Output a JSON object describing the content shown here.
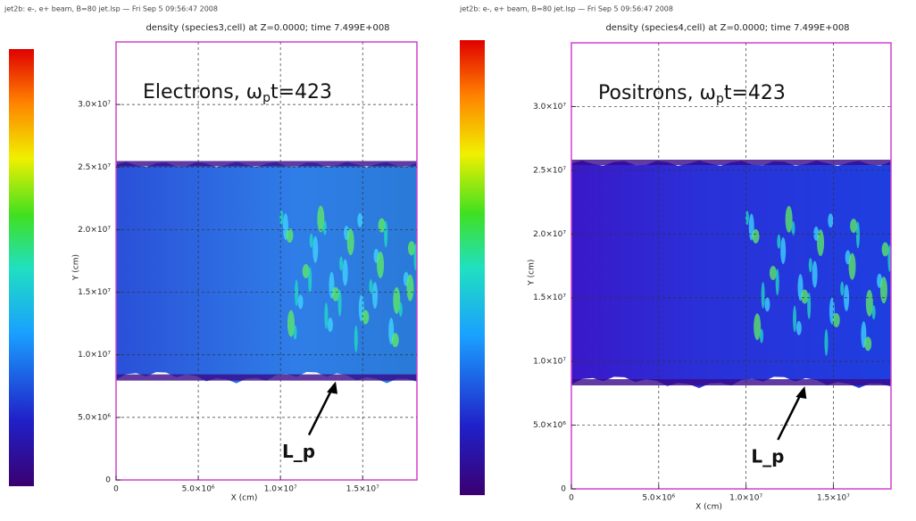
{
  "chart_data": [
    {
      "type": "heatmap",
      "header": "jet2b: e-, e+ beam, B=80 jet.lsp — Fri Sep 5 09:56:47 2008",
      "title": "density (species3,cell) at Z=0.0000; time 7.499E+008",
      "annotation": [
        "Electrons, ω",
        "p",
        "t=423"
      ],
      "marker_label": "L_p",
      "xlabel": "X (cm)",
      "ylabel": "Y (cm)",
      "xlim": [
        0,
        18300000
      ],
      "ylim": [
        0,
        35000000
      ],
      "xticks": [
        0,
        {
          "value": 5000000,
          "label": "5.0×10⁶"
        },
        {
          "value": 10000000,
          "label": "1.0×10⁷"
        },
        {
          "value": 15000000,
          "label": "1.5×10⁷"
        }
      ],
      "yticks": [
        0,
        {
          "value": 5000000,
          "label": "5.0×10⁶"
        },
        {
          "value": 10000000,
          "label": "1.0×10⁷"
        },
        {
          "value": 15000000,
          "label": "1.5×10⁷"
        },
        {
          "value": 20000000,
          "label": "2.0×10⁷"
        },
        {
          "value": 25000000,
          "label": "2.5×10⁷"
        },
        {
          "value": 30000000,
          "label": "3.0×10⁷"
        }
      ],
      "grid": true
    },
    {
      "type": "heatmap",
      "header": "jet2b: e-, e+ beam, B=80 jet.lsp — Fri Sep 5 09:56:47 2008",
      "title": "density (species4,cell) at Z=0.0000; time 7.499E+008",
      "annotation": [
        "Positrons, ω",
        "p",
        "t=423"
      ],
      "marker_label": "L_p",
      "xlabel": "X (cm)",
      "ylabel": "Y (cm)",
      "xlim": [
        0,
        18300000
      ],
      "ylim": [
        0,
        35000000
      ],
      "xticks": [
        0,
        {
          "value": 5000000,
          "label": "5.0×10⁶"
        },
        {
          "value": 10000000,
          "label": "1.0×10⁷"
        },
        {
          "value": 15000000,
          "label": "1.5×10⁷"
        }
      ],
      "yticks": [
        0,
        {
          "value": 5000000,
          "label": "5.0×10⁶"
        },
        {
          "value": 10000000,
          "label": "1.0×10⁷"
        },
        {
          "value": 15000000,
          "label": "1.5×10⁷"
        },
        {
          "value": 20000000,
          "label": "2.0×10⁷"
        },
        {
          "value": 25000000,
          "label": "2.5×10⁷"
        },
        {
          "value": 30000000,
          "label": "3.0×10⁷"
        }
      ],
      "grid": true
    }
  ]
}
